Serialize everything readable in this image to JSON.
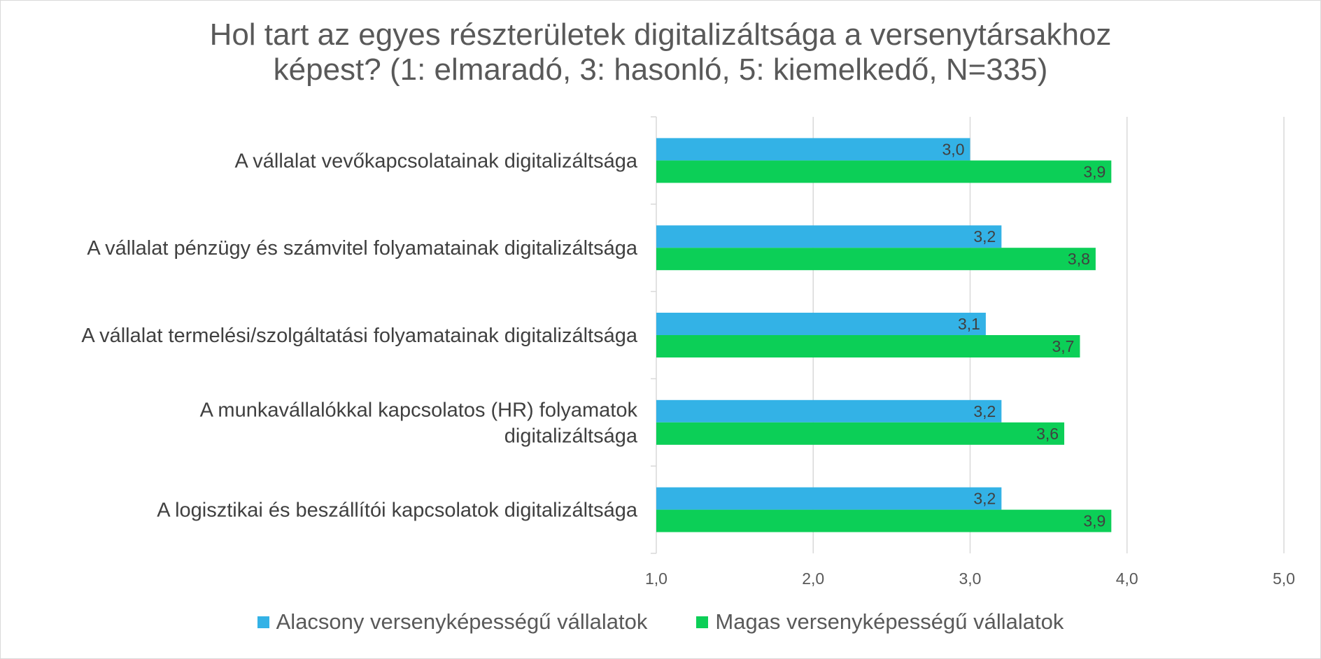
{
  "chart_data": {
    "type": "bar",
    "orientation": "horizontal",
    "title_lines": [
      "Hol tart az egyes részterületek digitalizáltsága a versenytársakhoz",
      "képest? (1: elmaradó, 3: hasonló, 5: kiemelkedő, N=335)"
    ],
    "categories": [
      [
        "A vállalat vevőkapcsolatainak digitalizáltsága"
      ],
      [
        "A vállalat pénzügy és számvitel folyamatainak digitalizáltsága"
      ],
      [
        "A vállalat termelési/szolgáltatási folyamatainak digitalizáltsága"
      ],
      [
        "A munkavállalókkal kapcsolatos (HR) folyamatok",
        "digitalizáltsága"
      ],
      [
        "A logisztikai és beszállítói kapcsolatok digitalizáltsága"
      ]
    ],
    "series": [
      {
        "name": "Alacsony versenyképességű vállalatok",
        "color": "#33b2e6",
        "values": [
          3.0,
          3.2,
          3.1,
          3.2,
          3.2
        ],
        "labels": [
          "3,0",
          "3,2",
          "3,1",
          "3,2",
          "3,2"
        ]
      },
      {
        "name": "Magas versenyképességű vállalatok",
        "color": "#0ccf57",
        "values": [
          3.9,
          3.8,
          3.7,
          3.6,
          3.9
        ],
        "labels": [
          "3,9",
          "3,8",
          "3,7",
          "3,6",
          "3,9"
        ]
      }
    ],
    "xlim": [
      1,
      5
    ],
    "xticks": [
      "1,0",
      "2,0",
      "3,0",
      "4,0",
      "5,0"
    ],
    "grid": true,
    "legend_position": "bottom"
  }
}
